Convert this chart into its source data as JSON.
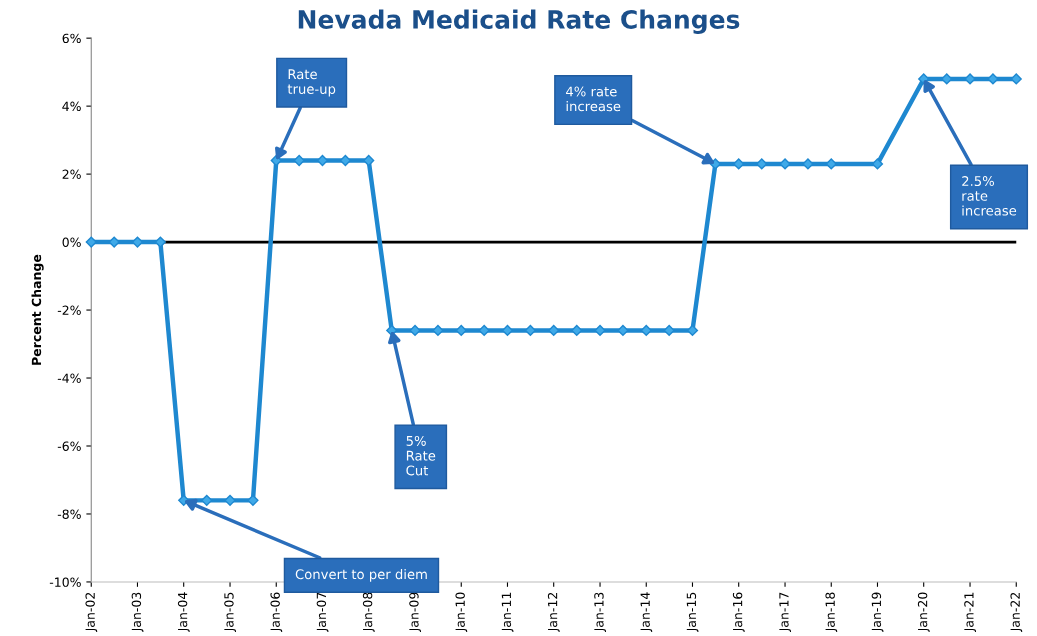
{
  "chart_data": {
    "type": "line",
    "title": "Nevada Medicaid Rate Changes",
    "ylabel": "Percent Change",
    "x": [
      "2002-01",
      "2002-07",
      "2003-01",
      "2003-07",
      "2004-01",
      "2004-07",
      "2005-01",
      "2005-07",
      "2006-01",
      "2006-07",
      "2007-01",
      "2007-07",
      "2008-01",
      "2008-07",
      "2009-01",
      "2009-07",
      "2010-01",
      "2010-07",
      "2011-01",
      "2011-07",
      "2012-01",
      "2012-07",
      "2013-01",
      "2013-07",
      "2014-01",
      "2014-07",
      "2015-01",
      "2015-07",
      "2016-01",
      "2016-07",
      "2017-01",
      "2017-07",
      "2018-01",
      "2019-01",
      "2020-01",
      "2020-07",
      "2021-01",
      "2021-07",
      "2022-01"
    ],
    "series": [
      {
        "color": "#1e88d0",
        "values": [
          0,
          0,
          0,
          0,
          -7.6,
          -7.6,
          -7.6,
          -7.6,
          2.4,
          2.4,
          2.4,
          2.4,
          2.4,
          -2.6,
          -2.6,
          -2.6,
          -2.6,
          -2.6,
          -2.6,
          -2.6,
          -2.6,
          -2.6,
          -2.6,
          -2.6,
          -2.6,
          -2.6,
          -2.6,
          2.3,
          2.3,
          2.3,
          2.3,
          2.3,
          2.3,
          2.3,
          4.8,
          4.8,
          4.8,
          4.8,
          4.8
        ]
      }
    ],
    "marker": "diamond",
    "line_style": "solid",
    "grid": false,
    "legend": false,
    "xlim": [
      "2002-01",
      "2022-01"
    ],
    "xticks": [
      {
        "value": "2002-01",
        "label": "Jan-02"
      },
      {
        "value": "2003-01",
        "label": "Jan-03"
      },
      {
        "value": "2004-01",
        "label": "Jan-04"
      },
      {
        "value": "2005-01",
        "label": "Jan-05"
      },
      {
        "value": "2006-01",
        "label": "Jan-06"
      },
      {
        "value": "2007-01",
        "label": "Jan-07"
      },
      {
        "value": "2008-01",
        "label": "Jan-08"
      },
      {
        "value": "2009-01",
        "label": "Jan-09"
      },
      {
        "value": "2010-01",
        "label": "Jan-10"
      },
      {
        "value": "2011-01",
        "label": "Jan-11"
      },
      {
        "value": "2012-01",
        "label": "Jan-12"
      },
      {
        "value": "2013-01",
        "label": "Jan-13"
      },
      {
        "value": "2014-01",
        "label": "Jan-14"
      },
      {
        "value": "2015-01",
        "label": "Jan-15"
      },
      {
        "value": "2016-01",
        "label": "Jan-16"
      },
      {
        "value": "2017-01",
        "label": "Jan-17"
      },
      {
        "value": "2018-01",
        "label": "Jan-18"
      },
      {
        "value": "2019-01",
        "label": "Jan-19"
      },
      {
        "value": "2020-01",
        "label": "Jan-20"
      },
      {
        "value": "2021-01",
        "label": "Jan-21"
      },
      {
        "value": "2022-01",
        "label": "Jan-22"
      }
    ],
    "ylim": [
      -10,
      6
    ],
    "yticks": [
      {
        "value": -10,
        "label": "-10%"
      },
      {
        "value": -8,
        "label": "-8%"
      },
      {
        "value": -6,
        "label": "-6%"
      },
      {
        "value": -4,
        "label": "-4%"
      },
      {
        "value": -2,
        "label": "-2%"
      },
      {
        "value": 0,
        "label": "0%"
      },
      {
        "value": 2,
        "label": "2%"
      },
      {
        "value": 4,
        "label": "4%"
      },
      {
        "value": 6,
        "label": "6%"
      }
    ],
    "ref_lines": [
      {
        "axis": "y",
        "value": 0,
        "color": "#000000"
      }
    ],
    "annotations": [
      {
        "text": "Convert to per diem",
        "x": "2004-01",
        "y": -7.6
      },
      {
        "text": "Rate\ntrue-up",
        "x": "2006-01",
        "y": 2.4
      },
      {
        "text": "5%\nRate\nCut",
        "x": "2008-07",
        "y": -2.6
      },
      {
        "text": "4% rate\nincrease",
        "x": "2015-07",
        "y": 2.3
      },
      {
        "text": "2.5%\nrate\nincrease",
        "x": "2020-01",
        "y": 4.8
      }
    ]
  }
}
